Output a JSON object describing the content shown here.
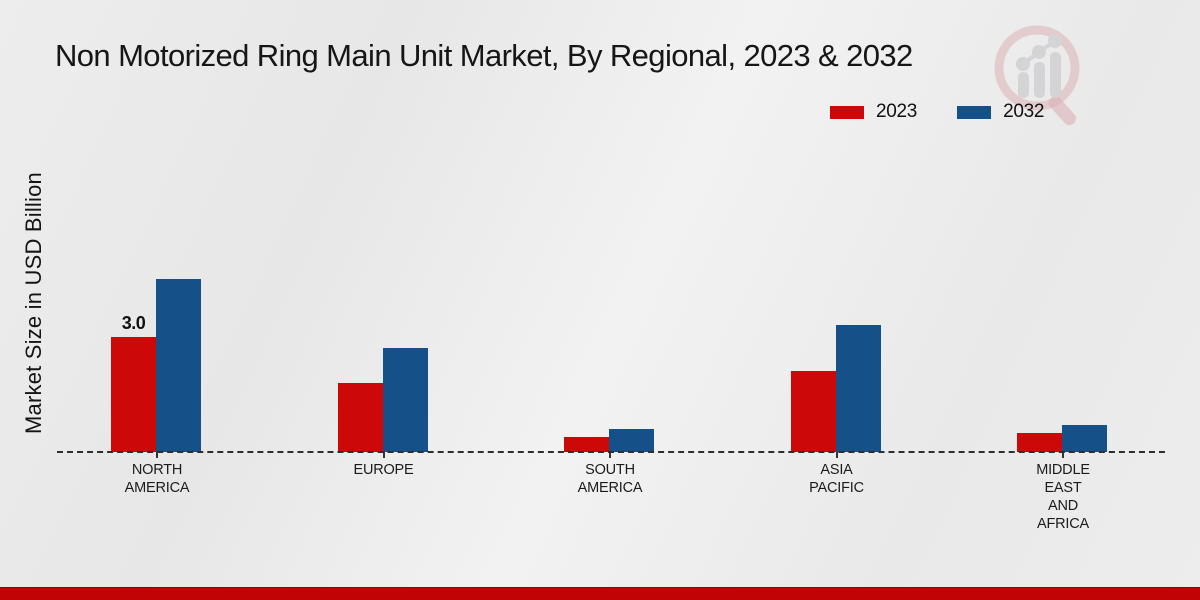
{
  "chart_data": {
    "type": "bar",
    "title": "Non Motorized Ring Main Unit Market, By Regional, 2023 & 2032",
    "ylabel": "Market Size in USD Billion",
    "xlabel": "",
    "categories": [
      [
        "NORTH",
        "AMERICA"
      ],
      [
        "EUROPE"
      ],
      [
        "SOUTH",
        "AMERICA"
      ],
      [
        "ASIA",
        "PACIFIC"
      ],
      [
        "MIDDLE",
        "EAST",
        "AND",
        "AFRICA"
      ]
    ],
    "series": [
      {
        "name": "2023",
        "color": "#cc0808",
        "values": [
          3.0,
          1.8,
          0.4,
          2.1,
          0.5
        ]
      },
      {
        "name": "2032",
        "color": "#155089",
        "values": [
          4.5,
          2.7,
          0.6,
          3.3,
          0.7
        ]
      }
    ],
    "annotations": [
      {
        "series_index": 0,
        "category_index": 0,
        "text": "3.0"
      }
    ],
    "ylim": [
      0,
      5
    ],
    "grid": false,
    "legend_position": "top-right",
    "baseline_style": "dashed"
  },
  "branding": {
    "watermark_icon": "magnifier-growth-chart-logo",
    "accent_color": "#c00404"
  }
}
